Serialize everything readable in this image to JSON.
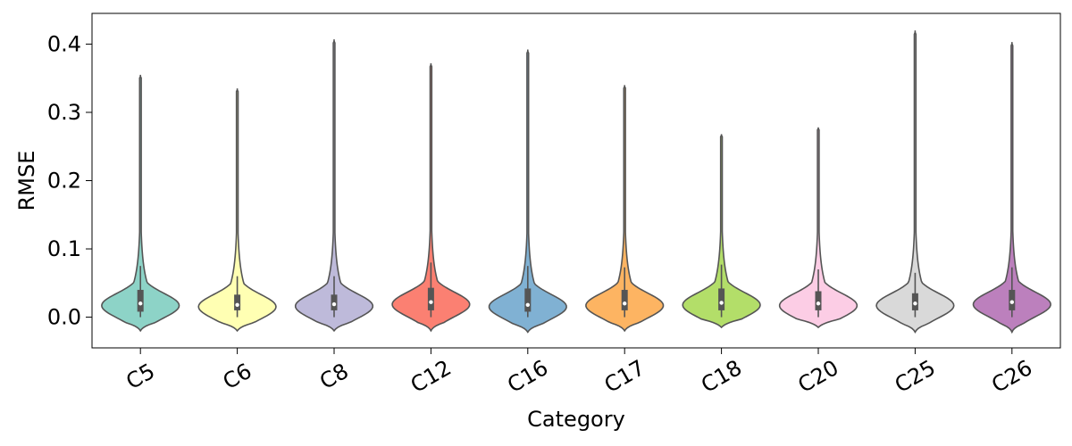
{
  "chart_data": {
    "type": "violin",
    "xlabel": "Category",
    "ylabel": "RMSE",
    "ylim": [
      -0.045,
      0.445
    ],
    "yticks": [
      0.0,
      0.1,
      0.2,
      0.3,
      0.4
    ],
    "ytick_labels": [
      "0.0",
      "0.1",
      "0.2",
      "0.3",
      "0.4"
    ],
    "grid": false,
    "legend": "none",
    "xtick_rotation_deg": -30,
    "categories": [
      "C5",
      "C6",
      "C8",
      "C12",
      "C16",
      "C17",
      "C18",
      "C20",
      "C25",
      "C26"
    ],
    "series": [
      {
        "category": "C5",
        "color": "#8dd3c7",
        "min": -0.02,
        "max": 0.355,
        "q1": 0.008,
        "median": 0.02,
        "q3": 0.04,
        "whisker_low": 0.0,
        "whisker_high": 0.075
      },
      {
        "category": "C6",
        "color": "#ffffb3",
        "min": -0.02,
        "max": 0.335,
        "q1": 0.01,
        "median": 0.018,
        "q3": 0.033,
        "whisker_low": 0.0,
        "whisker_high": 0.06
      },
      {
        "category": "C8",
        "color": "#bebada",
        "min": -0.02,
        "max": 0.407,
        "q1": 0.01,
        "median": 0.019,
        "q3": 0.033,
        "whisker_low": 0.0,
        "whisker_high": 0.06
      },
      {
        "category": "C12",
        "color": "#fb8072",
        "min": -0.02,
        "max": 0.372,
        "q1": 0.01,
        "median": 0.022,
        "q3": 0.043,
        "whisker_low": 0.0,
        "whisker_high": 0.08
      },
      {
        "category": "C16",
        "color": "#80b1d3",
        "min": -0.022,
        "max": 0.392,
        "q1": 0.008,
        "median": 0.018,
        "q3": 0.042,
        "whisker_low": 0.0,
        "whisker_high": 0.075
      },
      {
        "category": "C17",
        "color": "#fdb462",
        "min": -0.02,
        "max": 0.34,
        "q1": 0.01,
        "median": 0.02,
        "q3": 0.04,
        "whisker_low": 0.0,
        "whisker_high": 0.073
      },
      {
        "category": "C18",
        "color": "#b3de69",
        "min": -0.015,
        "max": 0.268,
        "q1": 0.01,
        "median": 0.021,
        "q3": 0.042,
        "whisker_low": 0.0,
        "whisker_high": 0.077
      },
      {
        "category": "C20",
        "color": "#fccde5",
        "min": -0.015,
        "max": 0.278,
        "q1": 0.01,
        "median": 0.02,
        "q3": 0.038,
        "whisker_low": 0.0,
        "whisker_high": 0.07
      },
      {
        "category": "C25",
        "color": "#d9d9d9",
        "min": -0.022,
        "max": 0.42,
        "q1": 0.01,
        "median": 0.02,
        "q3": 0.035,
        "whisker_low": 0.0,
        "whisker_high": 0.065
      },
      {
        "category": "C26",
        "color": "#bc80bd",
        "min": -0.022,
        "max": 0.403,
        "q1": 0.01,
        "median": 0.022,
        "q3": 0.04,
        "whisker_low": 0.0,
        "whisker_high": 0.073
      }
    ]
  }
}
